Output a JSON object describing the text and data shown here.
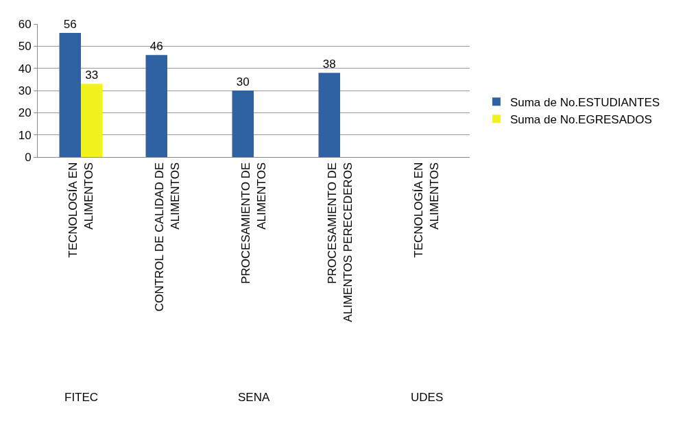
{
  "chart_data": {
    "type": "bar",
    "categories": [
      "TECNOLOGÍA EN ALIMENTOS",
      "CONTROL DE CALIDAD DE ALIMENTOS",
      "PROCESAMIENTO DE ALIMENTOS",
      "PROCESAMIENTO DE ALIMENTOS PERECEDEROS",
      "TECNOLOGÍA EN ALIMENTOS"
    ],
    "series": [
      {
        "name": "Suma de No.ESTUDIANTES",
        "color": "#2f62a3",
        "values": [
          56,
          46,
          30,
          38,
          null
        ]
      },
      {
        "name": "Suma de No.EGRESADOS",
        "color": "#f2f21e",
        "values": [
          33,
          null,
          null,
          null,
          null
        ]
      }
    ],
    "annotations": [
      "FITEC",
      "SENA",
      "UDES"
    ],
    "ylim": [
      0,
      60
    ],
    "yticks": [
      0,
      10,
      20,
      30,
      40,
      50,
      60
    ],
    "grid": "y",
    "legend": "right",
    "data_labels": true
  }
}
